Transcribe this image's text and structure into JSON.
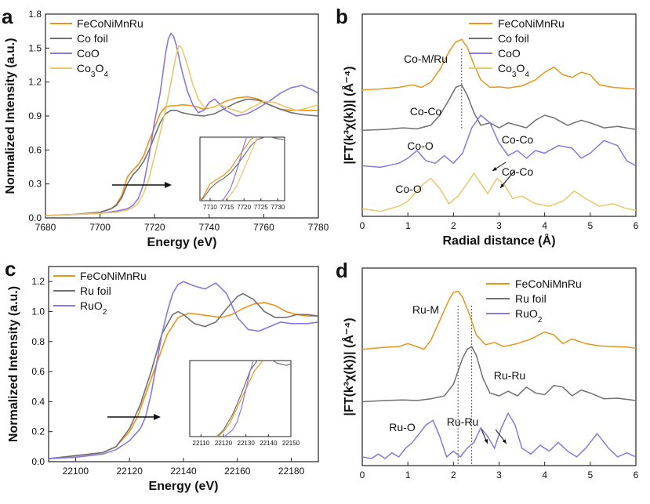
{
  "colors": {
    "FeCoNiMnRu": "#E8951E",
    "foil": "#707070",
    "oxide1": "#8878E0",
    "oxide2": "#E8C86E"
  },
  "chart_data": [
    {
      "panel": "a",
      "type": "line",
      "xlabel": "Energy (eV)",
      "ylabel": "Normalized Intensity (a.u.)",
      "xlim": [
        7680,
        7780
      ],
      "ylim": [
        0,
        1.8
      ],
      "xticks": [
        "7680",
        "7700",
        "7720",
        "7740",
        "7760",
        "7780"
      ],
      "yticks": [
        "0.0",
        "0.3",
        "0.6",
        "0.9",
        "1.2",
        "1.5",
        "1.8"
      ],
      "legend": [
        "FeCoNiMnRu",
        "Co foil",
        "CoO",
        "Co3O4"
      ],
      "series": [
        {
          "name": "FeCoNiMnRu",
          "color_key": "FeCoNiMnRu",
          "x": [
            7680,
            7690,
            7700,
            7704,
            7706,
            7708,
            7709,
            7710,
            7712,
            7714,
            7716,
            7718,
            7720,
            7722,
            7724,
            7726,
            7728,
            7730,
            7734,
            7738,
            7742,
            7746,
            7750,
            7754,
            7758,
            7762,
            7766,
            7770,
            7775,
            7780
          ],
          "y": [
            0.02,
            0.03,
            0.05,
            0.08,
            0.12,
            0.2,
            0.28,
            0.36,
            0.42,
            0.47,
            0.55,
            0.68,
            0.8,
            0.92,
            0.98,
            0.99,
            0.99,
            1.0,
            0.99,
            0.96,
            0.98,
            1.03,
            1.06,
            1.07,
            1.05,
            1.0,
            0.96,
            0.95,
            0.95,
            0.95
          ]
        },
        {
          "name": "Co foil",
          "color_key": "foil",
          "x": [
            7680,
            7690,
            7700,
            7704,
            7706,
            7708,
            7710,
            7712,
            7714,
            7716,
            7718,
            7720,
            7722,
            7724,
            7726,
            7728,
            7730,
            7734,
            7738,
            7742,
            7746,
            7750,
            7754,
            7758,
            7762,
            7766,
            7770,
            7775,
            7780
          ],
          "y": [
            0.02,
            0.03,
            0.05,
            0.08,
            0.11,
            0.18,
            0.3,
            0.38,
            0.43,
            0.5,
            0.6,
            0.72,
            0.84,
            0.92,
            0.95,
            0.95,
            0.93,
            0.91,
            0.9,
            0.92,
            0.97,
            1.02,
            1.05,
            1.04,
            1.0,
            0.96,
            0.93,
            0.91,
            0.9
          ]
        },
        {
          "name": "CoO",
          "color_key": "oxide1",
          "x": [
            7680,
            7690,
            7700,
            7706,
            7710,
            7712,
            7714,
            7716,
            7718,
            7720,
            7722,
            7724,
            7725,
            7726,
            7727,
            7728,
            7730,
            7732,
            7734,
            7736,
            7738,
            7740,
            7742,
            7744,
            7746,
            7750,
            7754,
            7758,
            7762,
            7766,
            7770,
            7774,
            7778,
            7780
          ],
          "y": [
            0.02,
            0.03,
            0.04,
            0.06,
            0.08,
            0.11,
            0.17,
            0.3,
            0.55,
            0.85,
            1.1,
            1.45,
            1.58,
            1.63,
            1.6,
            1.52,
            1.3,
            1.12,
            1.0,
            0.93,
            0.95,
            1.02,
            1.05,
            1.0,
            0.95,
            0.9,
            0.92,
            0.97,
            1.03,
            1.1,
            1.15,
            1.17,
            1.13,
            1.1
          ]
        },
        {
          "name": "Co3O4",
          "color_key": "oxide2",
          "x": [
            7680,
            7690,
            7700,
            7706,
            7710,
            7712,
            7714,
            7716,
            7718,
            7720,
            7722,
            7724,
            7726,
            7728,
            7729,
            7730,
            7732,
            7734,
            7736,
            7738,
            7740,
            7744,
            7748,
            7752,
            7756,
            7760,
            7764,
            7768,
            7772,
            7776,
            7780
          ],
          "y": [
            0.02,
            0.03,
            0.04,
            0.05,
            0.07,
            0.09,
            0.13,
            0.22,
            0.35,
            0.55,
            0.75,
            0.95,
            1.2,
            1.45,
            1.52,
            1.5,
            1.35,
            1.18,
            1.05,
            0.98,
            0.97,
            1.0,
            0.96,
            0.93,
            0.98,
            1.03,
            1.02,
            0.98,
            0.95,
            0.97,
            1.0
          ]
        }
      ],
      "inset": {
        "xlim": [
          7707,
          7732
        ],
        "xticks": [
          "7710",
          "7715",
          "7720",
          "7725",
          "7730"
        ]
      },
      "arrow": true
    },
    {
      "panel": "b",
      "type": "line",
      "xlabel": "Radial distance (Å)",
      "ylabel": "|FT(k³χ(k))| (Å⁻⁴)",
      "xlim": [
        0,
        6
      ],
      "xticks": [
        "0",
        "1",
        "2",
        "3",
        "4",
        "5",
        "6"
      ],
      "legend": [
        "FeCoNiMnRu",
        "Co foil",
        "CoO",
        "Co3O4"
      ],
      "reference_line_x": 2.18,
      "annotations": [
        "Co-M/Ru",
        "Co-Co",
        "Co-O",
        "Co-Co",
        "Co-O",
        "Co-Co"
      ],
      "series": [
        {
          "name": "FeCoNiMnRu",
          "color_key": "FeCoNiMnRu",
          "offset": 2.4,
          "x": [
            0,
            0.4,
            0.8,
            1.1,
            1.3,
            1.5,
            1.7,
            1.9,
            2.05,
            2.18,
            2.3,
            2.45,
            2.6,
            2.8,
            3.0,
            3.2,
            3.5,
            3.8,
            4.0,
            4.2,
            4.4,
            4.6,
            4.8,
            5.0,
            5.2,
            5.5,
            5.8,
            6.0
          ],
          "y": [
            0.0,
            0.02,
            0.05,
            0.1,
            0.05,
            0.15,
            0.4,
            0.75,
            0.95,
            1.0,
            0.85,
            0.5,
            0.2,
            0.05,
            0.06,
            0.04,
            0.08,
            0.2,
            0.35,
            0.45,
            0.3,
            0.25,
            0.35,
            0.3,
            0.1,
            0.05,
            0.03,
            0.02
          ]
        },
        {
          "name": "Co foil",
          "color_key": "foil",
          "offset": 1.6,
          "x": [
            0,
            0.5,
            0.9,
            1.2,
            1.5,
            1.7,
            1.9,
            2.05,
            2.18,
            2.3,
            2.45,
            2.6,
            2.8,
            3.0,
            3.2,
            3.4,
            3.6,
            3.8,
            4.0,
            4.2,
            4.5,
            4.8,
            5.0,
            5.3,
            5.6,
            6.0
          ],
          "y": [
            0.0,
            0.02,
            0.05,
            0.03,
            0.1,
            0.3,
            0.6,
            0.85,
            0.9,
            0.7,
            0.35,
            0.1,
            0.15,
            0.05,
            0.15,
            0.1,
            0.05,
            0.2,
            0.3,
            0.25,
            0.1,
            0.2,
            0.15,
            0.05,
            0.08,
            0.02
          ]
        },
        {
          "name": "CoO",
          "color_key": "oxide1",
          "offset": 0.85,
          "x": [
            0,
            0.4,
            0.8,
            1.0,
            1.2,
            1.4,
            1.6,
            1.8,
            2.0,
            2.2,
            2.4,
            2.6,
            2.8,
            3.0,
            3.2,
            3.4,
            3.6,
            3.8,
            4.0,
            4.3,
            4.6,
            4.8,
            5.0,
            5.3,
            5.6,
            5.8,
            6.0
          ],
          "y": [
            0.05,
            0.02,
            0.1,
            0.2,
            0.35,
            0.15,
            0.1,
            0.25,
            0.1,
            0.3,
            0.8,
            1.05,
            0.9,
            0.5,
            0.25,
            0.35,
            0.2,
            0.35,
            0.3,
            0.45,
            0.4,
            0.2,
            0.3,
            0.55,
            0.45,
            0.15,
            0.05
          ]
        },
        {
          "name": "Co3O4",
          "color_key": "oxide2",
          "offset": 0.0,
          "x": [
            0,
            0.4,
            0.8,
            1.0,
            1.2,
            1.35,
            1.5,
            1.7,
            1.9,
            2.1,
            2.3,
            2.45,
            2.6,
            2.75,
            2.95,
            3.1,
            3.3,
            3.5,
            3.8,
            4.1,
            4.4,
            4.65,
            4.9,
            5.2,
            5.5,
            5.8,
            6.0
          ],
          "y": [
            0.05,
            0.0,
            0.1,
            0.2,
            0.4,
            0.55,
            0.65,
            0.45,
            0.15,
            0.3,
            0.55,
            0.75,
            0.55,
            0.35,
            0.65,
            0.55,
            0.25,
            0.3,
            0.15,
            0.1,
            0.2,
            0.4,
            0.25,
            0.1,
            0.15,
            0.05,
            0.02
          ]
        }
      ]
    },
    {
      "panel": "c",
      "type": "line",
      "xlabel": "Energy (eV)",
      "ylabel": "Normalized Intensity (a.u.)",
      "xlim": [
        22090,
        22190
      ],
      "ylim": [
        0,
        1.3
      ],
      "xticks": [
        "22100",
        "22120",
        "22140",
        "22160",
        "22180"
      ],
      "yticks": [
        "0.0",
        "0.2",
        "0.4",
        "0.6",
        "0.8",
        "1.0",
        "1.2"
      ],
      "legend": [
        "FeCoNiMnRu",
        "Ru foil",
        "RuO2"
      ],
      "series": [
        {
          "name": "FeCoNiMnRu",
          "color_key": "FeCoNiMnRu",
          "x": [
            22090,
            22100,
            22110,
            22115,
            22120,
            22123,
            22126,
            22130,
            22134,
            22138,
            22142,
            22146,
            22150,
            22154,
            22158,
            22162,
            22166,
            22170,
            22174,
            22178,
            22182,
            22186,
            22190
          ],
          "y": [
            0.02,
            0.04,
            0.06,
            0.1,
            0.2,
            0.3,
            0.45,
            0.65,
            0.85,
            0.96,
            0.99,
            0.98,
            0.97,
            0.96,
            0.98,
            1.02,
            1.05,
            1.06,
            1.04,
            1.0,
            0.98,
            0.97,
            0.97
          ]
        },
        {
          "name": "Ru foil",
          "color_key": "foil",
          "x": [
            22090,
            22100,
            22110,
            22115,
            22120,
            22124,
            22128,
            22132,
            22136,
            22138,
            22140,
            22144,
            22148,
            22152,
            22156,
            22160,
            22162,
            22166,
            22170,
            22174,
            22178,
            22182,
            22186,
            22190
          ],
          "y": [
            0.02,
            0.04,
            0.06,
            0.1,
            0.22,
            0.38,
            0.6,
            0.85,
            0.98,
            1.0,
            0.98,
            0.92,
            0.9,
            0.93,
            1.02,
            1.1,
            1.12,
            1.08,
            1.0,
            0.96,
            0.96,
            0.98,
            0.98,
            0.97
          ]
        },
        {
          "name": "RuO2",
          "color_key": "oxide1",
          "x": [
            22090,
            22100,
            22110,
            22115,
            22120,
            22124,
            22126,
            22128,
            22130,
            22132,
            22134,
            22136,
            22138,
            22140,
            22144,
            22148,
            22152,
            22156,
            22160,
            22164,
            22168,
            22172,
            22176,
            22180,
            22186,
            22190
          ],
          "y": [
            0.02,
            0.03,
            0.05,
            0.08,
            0.14,
            0.22,
            0.3,
            0.45,
            0.65,
            0.85,
            1.0,
            1.12,
            1.18,
            1.2,
            1.17,
            1.15,
            1.19,
            1.12,
            0.96,
            0.88,
            0.87,
            0.9,
            0.93,
            0.92,
            0.92,
            0.93
          ]
        }
      ],
      "inset": {
        "xlim": [
          22105,
          22150
        ],
        "xticks": [
          "22110",
          "22120",
          "22130",
          "22140",
          "22150"
        ]
      },
      "arrow": true
    },
    {
      "panel": "d",
      "type": "line",
      "xlabel": "",
      "ylabel": "|FT(k³χ(k))| (Å⁻⁴)",
      "xlim": [
        0,
        6
      ],
      "xticks": [
        "0",
        "1",
        "2",
        "3",
        "4",
        "5",
        "6"
      ],
      "legend": [
        "FeCoNiMnRu",
        "Ru foil",
        "RuO2"
      ],
      "reference_lines_x": [
        2.1,
        2.4
      ],
      "annotations": [
        "Ru-M",
        "Ru-Ru",
        "Ru-O",
        "Ru-Ru"
      ],
      "series": [
        {
          "name": "FeCoNiMnRu",
          "color_key": "FeCoNiMnRu",
          "offset": 1.9,
          "x": [
            0,
            0.4,
            0.8,
            1.0,
            1.2,
            1.35,
            1.5,
            1.7,
            1.9,
            2.0,
            2.1,
            2.2,
            2.35,
            2.5,
            2.7,
            2.9,
            3.1,
            3.4,
            3.7,
            4.0,
            4.2,
            4.4,
            4.6,
            4.9,
            5.2,
            5.5,
            5.8,
            6.0
          ],
          "y": [
            0.0,
            0.03,
            0.05,
            0.1,
            0.05,
            0.0,
            0.15,
            0.5,
            0.85,
            0.98,
            1.0,
            0.9,
            0.6,
            0.25,
            0.08,
            0.12,
            0.05,
            0.1,
            0.18,
            0.3,
            0.25,
            0.1,
            0.18,
            0.1,
            0.06,
            0.05,
            0.04,
            0.02
          ]
        },
        {
          "name": "Ru foil",
          "color_key": "foil",
          "offset": 1.0,
          "x": [
            0,
            0.5,
            0.9,
            1.2,
            1.5,
            1.8,
            2.0,
            2.2,
            2.3,
            2.4,
            2.5,
            2.65,
            2.8,
            3.0,
            3.2,
            3.4,
            3.6,
            3.8,
            4.0,
            4.2,
            4.4,
            4.6,
            4.8,
            5.0,
            5.3,
            5.6,
            6.0
          ],
          "y": [
            0.0,
            0.02,
            0.03,
            0.02,
            0.05,
            0.1,
            0.3,
            0.75,
            0.9,
            0.95,
            0.8,
            0.4,
            0.15,
            0.1,
            0.18,
            0.1,
            0.25,
            0.15,
            0.12,
            0.28,
            0.25,
            0.1,
            0.2,
            0.15,
            0.05,
            0.06,
            0.02
          ]
        },
        {
          "name": "RuO2",
          "color_key": "oxide1",
          "offset": 0.0,
          "x": [
            0,
            0.2,
            0.35,
            0.5,
            0.65,
            0.8,
            0.95,
            1.1,
            1.25,
            1.4,
            1.55,
            1.7,
            1.85,
            2.0,
            2.15,
            2.3,
            2.45,
            2.6,
            2.75,
            2.9,
            3.05,
            3.2,
            3.35,
            3.5,
            3.7,
            3.9,
            4.1,
            4.3,
            4.5,
            4.7,
            4.9,
            5.15,
            5.4,
            5.6,
            5.8,
            6.0
          ],
          "y": [
            0.05,
            0.02,
            0.1,
            0.02,
            0.12,
            0.05,
            0.2,
            0.3,
            0.45,
            0.6,
            0.68,
            0.4,
            0.05,
            0.15,
            0.05,
            0.2,
            0.3,
            0.55,
            0.4,
            0.2,
            0.55,
            0.8,
            0.6,
            0.2,
            0.1,
            0.25,
            0.15,
            0.3,
            0.15,
            0.05,
            0.2,
            0.45,
            0.2,
            0.05,
            0.12,
            0.05
          ]
        }
      ]
    }
  ]
}
